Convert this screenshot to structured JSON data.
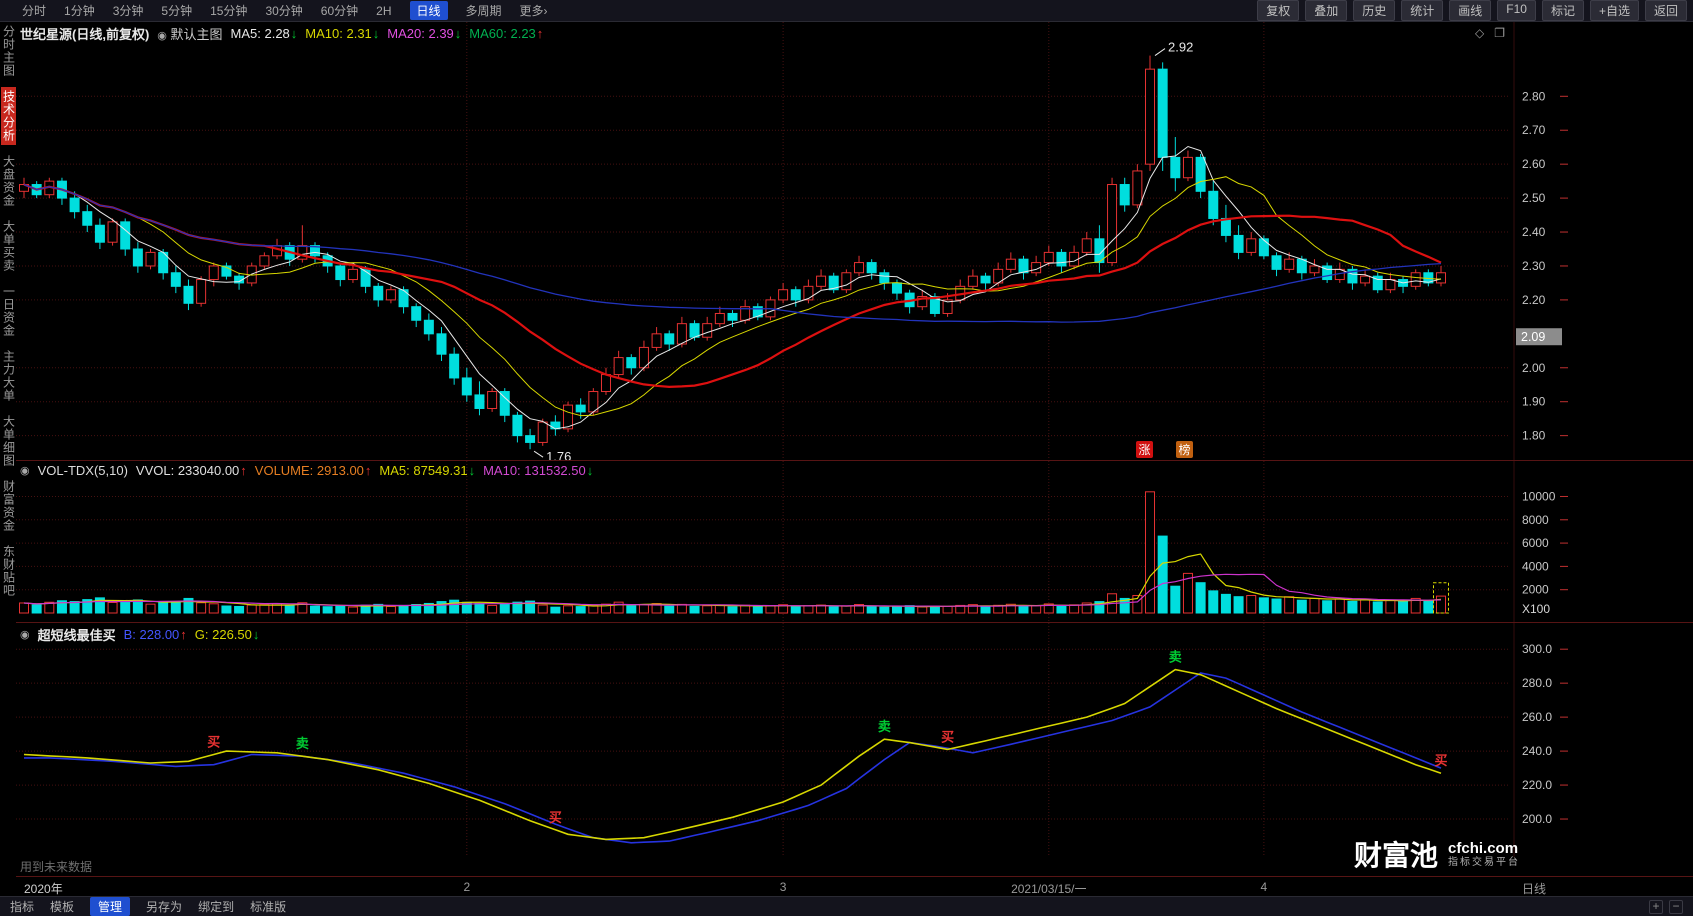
{
  "top_toolbar": {
    "periods": [
      "分时",
      "1分钟",
      "3分钟",
      "5分钟",
      "15分钟",
      "30分钟",
      "60分钟",
      "2H",
      "日线",
      "多周期",
      "更多›"
    ],
    "active_period": "日线",
    "right_buttons": [
      "复权",
      "叠加",
      "历史",
      "统计",
      "画线",
      "F10",
      "标记",
      "+自选",
      "返回"
    ]
  },
  "sidebar": {
    "items": [
      {
        "label": "分时主图",
        "active": false
      },
      {
        "label": "技术分析",
        "active": true
      },
      {
        "label": "大盘资金",
        "active": false
      },
      {
        "label": "大单买卖",
        "active": false
      },
      {
        "label": "一日资金",
        "active": false
      },
      {
        "label": "主力大单",
        "active": false
      },
      {
        "label": "大单细图",
        "active": false
      },
      {
        "label": "财富资金",
        "active": false
      },
      {
        "label": "东财贴吧",
        "active": false
      }
    ]
  },
  "main_header": {
    "title": "世纪星源(日线,前复权)",
    "overlay": "默认主图",
    "segments": [
      {
        "text": "MA5: 2.28",
        "dir": "down",
        "color": "#e8e8e8"
      },
      {
        "text": "MA10: 2.31",
        "dir": "down",
        "color": "#d7d700"
      },
      {
        "text": "MA20: 2.39",
        "dir": "down",
        "color": "#e050e0"
      },
      {
        "text": "MA60: 2.23",
        "dir": "up",
        "color": "#00b050"
      }
    ],
    "badges": [
      {
        "text": "涨",
        "bg": "#d01010"
      },
      {
        "text": "榜",
        "bg": "#c06010"
      }
    ]
  },
  "vol_header": {
    "title": "VOL-TDX(5,10)",
    "segments": [
      {
        "text": "VVOL: 233040.00",
        "dir": "up",
        "color": "#e0e0e0"
      },
      {
        "text": "VOLUME: 2913.00",
        "dir": "up",
        "color": "#e67e22"
      },
      {
        "text": "MA5: 87549.31",
        "dir": "down",
        "color": "#d7d700"
      },
      {
        "text": "MA10: 131532.50",
        "dir": "down",
        "color": "#d24ad2"
      }
    ]
  },
  "ind_header": {
    "title": "超短线最佳买",
    "segments": [
      {
        "text": "B: 228.00",
        "dir": "up",
        "color": "#4455ff"
      },
      {
        "text": "G: 226.50",
        "dir": "down",
        "color": "#d7d700"
      }
    ]
  },
  "footer": {
    "warning": "用到未来数据",
    "period_label": "日线",
    "tabs": [
      "指标",
      "模板",
      "管理",
      "另存为",
      "绑定到",
      "标准版"
    ],
    "active_tab": "管理",
    "zoom_in": "+",
    "zoom_out": "−"
  },
  "watermark": {
    "title": "财富池",
    "domain": "cfchi.com",
    "subtitle": "指标交易平台"
  },
  "x_axis": {
    "labels": [
      {
        "text": "2020年",
        "index": 0
      },
      {
        "text": "2",
        "index": 35
      },
      {
        "text": "3",
        "index": 60
      },
      {
        "text": "2021/03/15/一",
        "index": 81
      },
      {
        "text": "4",
        "index": 98
      }
    ],
    "grid_indices": [
      35,
      60,
      81,
      98
    ]
  },
  "chart_data": [
    {
      "type": "candlestick",
      "title": "世纪星源 日线 前复权",
      "ylim": [
        1.74,
        2.96
      ],
      "y_ticks": [
        1.8,
        1.9,
        2.0,
        2.2,
        2.3,
        2.4,
        2.5,
        2.6,
        2.7,
        2.8
      ],
      "last_price": 2.09,
      "high_annotation": 2.92,
      "low_annotation": 1.76,
      "up_color": "#e63232",
      "down_color": "#00dede",
      "ma": [
        {
          "name": "MA5",
          "period": 5,
          "color": "#e8e8e8",
          "width": 1
        },
        {
          "name": "MA10",
          "period": 10,
          "color": "#d7d700",
          "width": 1
        },
        {
          "name": "MA20",
          "period": 20,
          "color": "#dd1010",
          "width": 2.2
        },
        {
          "name": "MA60",
          "period": 60,
          "color": "#2233bb",
          "width": 1.3
        }
      ],
      "candles": [
        [
          2.52,
          2.56,
          2.5,
          2.54,
          860
        ],
        [
          2.54,
          2.55,
          2.5,
          2.51,
          700
        ],
        [
          2.51,
          2.56,
          2.5,
          2.55,
          920
        ],
        [
          2.55,
          2.56,
          2.48,
          2.5,
          1050
        ],
        [
          2.5,
          2.52,
          2.44,
          2.46,
          980
        ],
        [
          2.46,
          2.48,
          2.4,
          2.42,
          1150
        ],
        [
          2.42,
          2.44,
          2.35,
          2.37,
          1300
        ],
        [
          2.37,
          2.44,
          2.36,
          2.43,
          900
        ],
        [
          2.43,
          2.44,
          2.33,
          2.35,
          1000
        ],
        [
          2.35,
          2.37,
          2.28,
          2.3,
          1120
        ],
        [
          2.3,
          2.35,
          2.29,
          2.34,
          760
        ],
        [
          2.34,
          2.35,
          2.26,
          2.28,
          890
        ],
        [
          2.28,
          2.3,
          2.22,
          2.24,
          950
        ],
        [
          2.24,
          2.26,
          2.17,
          2.19,
          1250
        ],
        [
          2.19,
          2.27,
          2.18,
          2.26,
          880
        ],
        [
          2.26,
          2.31,
          2.24,
          2.3,
          790
        ],
        [
          2.3,
          2.31,
          2.26,
          2.27,
          600
        ],
        [
          2.27,
          2.28,
          2.23,
          2.25,
          560
        ],
        [
          2.25,
          2.31,
          2.24,
          2.3,
          680
        ],
        [
          2.3,
          2.34,
          2.29,
          2.33,
          720
        ],
        [
          2.33,
          2.38,
          2.32,
          2.36,
          810
        ],
        [
          2.36,
          2.37,
          2.3,
          2.32,
          640
        ],
        [
          2.32,
          2.42,
          2.31,
          2.36,
          880
        ],
        [
          2.36,
          2.37,
          2.31,
          2.33,
          590
        ],
        [
          2.33,
          2.34,
          2.28,
          2.3,
          540
        ],
        [
          2.3,
          2.31,
          2.24,
          2.26,
          620
        ],
        [
          2.26,
          2.3,
          2.25,
          2.29,
          510
        ],
        [
          2.29,
          2.3,
          2.22,
          2.24,
          670
        ],
        [
          2.24,
          2.25,
          2.18,
          2.2,
          740
        ],
        [
          2.2,
          2.24,
          2.19,
          2.23,
          560
        ],
        [
          2.23,
          2.24,
          2.16,
          2.18,
          650
        ],
        [
          2.18,
          2.19,
          2.12,
          2.14,
          730
        ],
        [
          2.14,
          2.16,
          2.08,
          2.1,
          820
        ],
        [
          2.1,
          2.12,
          2.02,
          2.04,
          980
        ],
        [
          2.04,
          2.06,
          1.95,
          1.97,
          1100
        ],
        [
          1.97,
          2.0,
          1.9,
          1.92,
          920
        ],
        [
          1.92,
          1.96,
          1.86,
          1.88,
          810
        ],
        [
          1.88,
          1.94,
          1.87,
          1.93,
          650
        ],
        [
          1.93,
          1.94,
          1.84,
          1.86,
          740
        ],
        [
          1.86,
          1.87,
          1.78,
          1.8,
          930
        ],
        [
          1.8,
          1.82,
          1.76,
          1.78,
          1020
        ],
        [
          1.78,
          1.85,
          1.77,
          1.84,
          680
        ],
        [
          1.84,
          1.86,
          1.8,
          1.82,
          500
        ],
        [
          1.82,
          1.9,
          1.81,
          1.89,
          620
        ],
        [
          1.89,
          1.91,
          1.85,
          1.87,
          550
        ],
        [
          1.87,
          1.94,
          1.86,
          1.93,
          640
        ],
        [
          1.93,
          2.0,
          1.92,
          1.98,
          760
        ],
        [
          1.98,
          2.05,
          1.97,
          2.03,
          930
        ],
        [
          2.03,
          2.04,
          1.98,
          2.0,
          620
        ],
        [
          2.0,
          2.08,
          1.99,
          2.06,
          720
        ],
        [
          2.06,
          2.12,
          2.05,
          2.1,
          810
        ],
        [
          2.1,
          2.11,
          2.05,
          2.07,
          590
        ],
        [
          2.07,
          2.15,
          2.06,
          2.13,
          740
        ],
        [
          2.13,
          2.14,
          2.08,
          2.09,
          570
        ],
        [
          2.09,
          2.15,
          2.08,
          2.13,
          620
        ],
        [
          2.13,
          2.18,
          2.12,
          2.16,
          690
        ],
        [
          2.16,
          2.17,
          2.12,
          2.14,
          540
        ],
        [
          2.14,
          2.2,
          2.13,
          2.18,
          670
        ],
        [
          2.18,
          2.19,
          2.14,
          2.15,
          520
        ],
        [
          2.15,
          2.21,
          2.14,
          2.2,
          640
        ],
        [
          2.2,
          2.25,
          2.19,
          2.23,
          710
        ],
        [
          2.23,
          2.24,
          2.18,
          2.2,
          550
        ],
        [
          2.2,
          2.26,
          2.19,
          2.24,
          620
        ],
        [
          2.24,
          2.29,
          2.23,
          2.27,
          680
        ],
        [
          2.27,
          2.28,
          2.22,
          2.23,
          520
        ],
        [
          2.23,
          2.29,
          2.22,
          2.28,
          610
        ],
        [
          2.28,
          2.33,
          2.27,
          2.31,
          730
        ],
        [
          2.31,
          2.32,
          2.26,
          2.28,
          560
        ],
        [
          2.28,
          2.29,
          2.23,
          2.25,
          500
        ],
        [
          2.25,
          2.26,
          2.2,
          2.22,
          550
        ],
        [
          2.22,
          2.23,
          2.16,
          2.18,
          630
        ],
        [
          2.18,
          2.23,
          2.17,
          2.21,
          520
        ],
        [
          2.21,
          2.22,
          2.15,
          2.16,
          600
        ],
        [
          2.16,
          2.22,
          2.15,
          2.2,
          560
        ],
        [
          2.2,
          2.26,
          2.19,
          2.24,
          650
        ],
        [
          2.24,
          2.29,
          2.23,
          2.27,
          720
        ],
        [
          2.27,
          2.28,
          2.23,
          2.25,
          540
        ],
        [
          2.25,
          2.31,
          2.24,
          2.29,
          660
        ],
        [
          2.29,
          2.34,
          2.28,
          2.32,
          750
        ],
        [
          2.32,
          2.33,
          2.26,
          2.28,
          580
        ],
        [
          2.28,
          2.33,
          2.27,
          2.31,
          640
        ],
        [
          2.31,
          2.36,
          2.3,
          2.34,
          780
        ],
        [
          2.34,
          2.35,
          2.28,
          2.3,
          600
        ],
        [
          2.3,
          2.36,
          2.29,
          2.34,
          700
        ],
        [
          2.34,
          2.4,
          2.33,
          2.38,
          860
        ],
        [
          2.38,
          2.42,
          2.28,
          2.31,
          980
        ],
        [
          2.31,
          2.56,
          2.3,
          2.54,
          1650
        ],
        [
          2.54,
          2.56,
          2.46,
          2.48,
          1250
        ],
        [
          2.48,
          2.6,
          2.47,
          2.58,
          1500
        ],
        [
          2.6,
          2.92,
          2.58,
          2.88,
          10400
        ],
        [
          2.88,
          2.9,
          2.58,
          2.62,
          6600
        ],
        [
          2.62,
          2.68,
          2.52,
          2.56,
          2300
        ],
        [
          2.56,
          2.64,
          2.55,
          2.62,
          3400
        ],
        [
          2.62,
          2.63,
          2.5,
          2.52,
          2600
        ],
        [
          2.52,
          2.55,
          2.42,
          2.44,
          1900
        ],
        [
          2.44,
          2.48,
          2.37,
          2.39,
          1600
        ],
        [
          2.39,
          2.42,
          2.32,
          2.34,
          1400
        ],
        [
          2.34,
          2.4,
          2.33,
          2.38,
          1500
        ],
        [
          2.38,
          2.39,
          2.32,
          2.33,
          1300
        ],
        [
          2.33,
          2.34,
          2.27,
          2.29,
          1200
        ],
        [
          2.29,
          2.34,
          2.28,
          2.32,
          1400
        ],
        [
          2.32,
          2.33,
          2.26,
          2.28,
          1100
        ],
        [
          2.28,
          2.32,
          2.27,
          2.3,
          1250
        ],
        [
          2.3,
          2.31,
          2.25,
          2.26,
          1050
        ],
        [
          2.26,
          2.31,
          2.25,
          2.29,
          1200
        ],
        [
          2.29,
          2.3,
          2.23,
          2.25,
          1000
        ],
        [
          2.25,
          2.29,
          2.24,
          2.27,
          1150
        ],
        [
          2.27,
          2.28,
          2.22,
          2.23,
          950
        ],
        [
          2.23,
          2.28,
          2.22,
          2.26,
          1100
        ],
        [
          2.26,
          2.27,
          2.22,
          2.24,
          1000
        ],
        [
          2.24,
          2.29,
          2.23,
          2.28,
          1250
        ],
        [
          2.28,
          2.29,
          2.24,
          2.25,
          1050
        ],
        [
          2.25,
          2.3,
          2.24,
          2.28,
          1450
        ]
      ]
    },
    {
      "type": "bar",
      "title": "VOL-TDX(5,10)",
      "ylim": [
        0,
        11500
      ],
      "y_ticks": [
        2000,
        4000,
        6000,
        8000,
        10000
      ],
      "unit": "X100",
      "ma": [
        {
          "name": "MA5",
          "period": 5,
          "color": "#d7d700"
        },
        {
          "name": "MA10",
          "period": 10,
          "color": "#cc33cc"
        }
      ],
      "values_note": "volumes are the 5th element of each candle entry, unit X100"
    },
    {
      "type": "line",
      "title": "超短线最佳买",
      "ylim": [
        180,
        306
      ],
      "y_ticks": [
        200.0,
        220.0,
        240.0,
        260.0,
        280.0,
        300.0
      ],
      "series": [
        {
          "name": "B",
          "color": "#2633e0",
          "last_value": 228.0
        },
        {
          "name": "G",
          "color": "#d7d700",
          "last_value": 226.5
        }
      ],
      "g_anchors": [
        [
          0,
          238
        ],
        [
          5,
          236
        ],
        [
          10,
          233
        ],
        [
          13,
          234
        ],
        [
          16,
          240
        ],
        [
          20,
          239
        ],
        [
          24,
          235
        ],
        [
          28,
          229
        ],
        [
          32,
          221
        ],
        [
          36,
          211
        ],
        [
          40,
          199
        ],
        [
          43,
          191
        ],
        [
          46,
          188
        ],
        [
          49,
          189
        ],
        [
          52,
          194
        ],
        [
          56,
          201
        ],
        [
          60,
          210
        ],
        [
          63,
          220
        ],
        [
          66,
          237
        ],
        [
          68,
          247
        ],
        [
          70,
          245
        ],
        [
          73,
          241
        ],
        [
          76,
          246
        ],
        [
          80,
          253
        ],
        [
          84,
          260
        ],
        [
          87,
          268
        ],
        [
          89,
          278
        ],
        [
          91,
          288
        ],
        [
          93,
          285
        ],
        [
          96,
          275
        ],
        [
          99,
          265
        ],
        [
          102,
          256
        ],
        [
          105,
          247
        ],
        [
          108,
          238
        ],
        [
          110,
          232
        ],
        [
          112,
          227
        ]
      ],
      "markers": [
        {
          "label": "买",
          "index": 15,
          "color": "#e63232"
        },
        {
          "label": "卖",
          "index": 22,
          "color": "#00cc33"
        },
        {
          "label": "买",
          "index": 42,
          "color": "#e63232"
        },
        {
          "label": "卖",
          "index": 68,
          "color": "#00cc33"
        },
        {
          "label": "买",
          "index": 73,
          "color": "#e63232"
        },
        {
          "label": "卖",
          "index": 91,
          "color": "#00cc33"
        },
        {
          "label": "买",
          "index": 112,
          "color": "#e63232"
        }
      ]
    }
  ]
}
